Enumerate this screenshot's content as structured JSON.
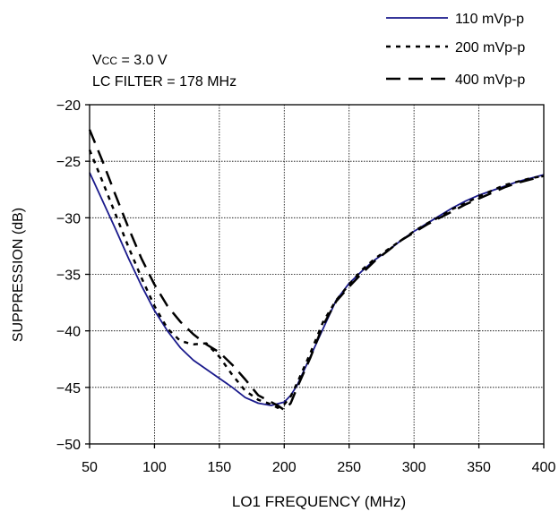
{
  "chart_data": {
    "type": "line",
    "title": "",
    "xlabel": "LO1 FREQUENCY (MHz)",
    "ylabel": "SUPPRESSION (dB)",
    "xlim": [
      50,
      400
    ],
    "ylim": [
      -50,
      -20
    ],
    "xticks": [
      50,
      100,
      150,
      200,
      250,
      300,
      350,
      400
    ],
    "yticks": [
      -20,
      -25,
      -30,
      -35,
      -40,
      -45,
      -50
    ],
    "xtick_labels": [
      "50",
      "100",
      "150",
      "200",
      "250",
      "300",
      "350",
      "400"
    ],
    "ytick_labels": [
      "−20",
      "−25",
      "−30",
      "−35",
      "−40",
      "−45",
      "−50"
    ],
    "grid": true,
    "legend_position": "top-right",
    "annotation": {
      "vcc_prefix": "V",
      "vcc_sub": "CC",
      "vcc_rest": " = 3.0 V",
      "filter": "LC FILTER = 178 MHz"
    },
    "series": [
      {
        "name": "110 mVp-p",
        "style": "solid",
        "color": "#1a1a8c",
        "x": [
          50,
          60,
          70,
          80,
          90,
          100,
          110,
          120,
          130,
          140,
          150,
          160,
          170,
          180,
          190,
          200,
          205,
          210,
          220,
          230,
          240,
          250,
          260,
          270,
          280,
          290,
          300,
          310,
          320,
          330,
          340,
          350,
          360,
          370,
          380,
          390,
          400
        ],
        "y": [
          -26.0,
          -28.5,
          -31.0,
          -33.6,
          -36.0,
          -38.2,
          -40.0,
          -41.5,
          -42.6,
          -43.4,
          -44.2,
          -45.0,
          -45.9,
          -46.4,
          -46.6,
          -46.3,
          -45.7,
          -44.8,
          -42.3,
          -39.8,
          -37.3,
          -35.8,
          -34.7,
          -33.7,
          -32.9,
          -32.0,
          -31.2,
          -30.5,
          -29.8,
          -29.1,
          -28.5,
          -28.0,
          -27.6,
          -27.2,
          -26.8,
          -26.5,
          -26.2
        ]
      },
      {
        "name": "200 mVp-p",
        "style": "dotted",
        "color": "#000000",
        "x": [
          50,
          60,
          70,
          80,
          90,
          100,
          110,
          120,
          130,
          140,
          150,
          160,
          170,
          180,
          190,
          195,
          200,
          205,
          210,
          220,
          230,
          240,
          250,
          260,
          270,
          280,
          290,
          300,
          310,
          320,
          330,
          340,
          350,
          360,
          370,
          380,
          390,
          400
        ],
        "y": [
          -24.0,
          -26.8,
          -29.7,
          -32.6,
          -35.3,
          -37.8,
          -39.8,
          -40.9,
          -41.2,
          -41.1,
          -42.3,
          -43.9,
          -45.3,
          -46.1,
          -46.5,
          -46.8,
          -46.5,
          -45.8,
          -44.6,
          -42.0,
          -39.2,
          -37.3,
          -35.9,
          -34.6,
          -33.6,
          -32.8,
          -32.0,
          -31.2,
          -30.5,
          -29.9,
          -29.2,
          -28.7,
          -28.1,
          -27.6,
          -27.1,
          -26.8,
          -26.5,
          -26.3
        ]
      },
      {
        "name": "400 mVp-p",
        "style": "dashed",
        "color": "#000000",
        "x": [
          50,
          60,
          70,
          80,
          90,
          100,
          110,
          120,
          130,
          140,
          150,
          160,
          170,
          180,
          190,
          195,
          200,
          205,
          210,
          220,
          230,
          240,
          250,
          260,
          270,
          280,
          290,
          300,
          310,
          320,
          330,
          340,
          350,
          360,
          370,
          380,
          390,
          400
        ],
        "y": [
          -22.2,
          -25.0,
          -28.0,
          -30.9,
          -33.6,
          -35.9,
          -37.8,
          -39.2,
          -40.3,
          -41.2,
          -41.9,
          -43.0,
          -44.3,
          -45.7,
          -46.3,
          -46.6,
          -47.0,
          -46.4,
          -45.0,
          -42.4,
          -39.5,
          -37.4,
          -36.1,
          -34.9,
          -33.8,
          -32.9,
          -32.0,
          -31.3,
          -30.6,
          -30.0,
          -29.4,
          -28.8,
          -28.3,
          -27.8,
          -27.3,
          -26.9,
          -26.6,
          -26.3
        ]
      }
    ]
  }
}
